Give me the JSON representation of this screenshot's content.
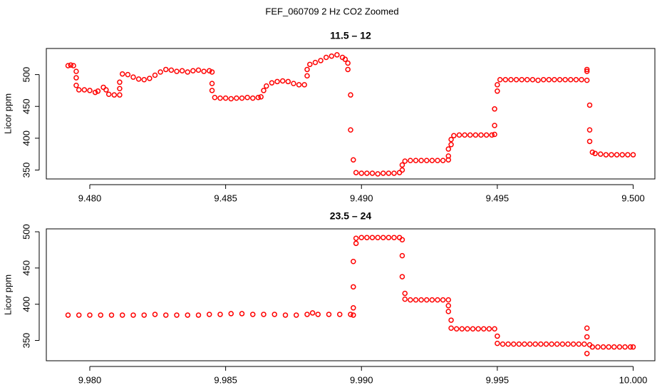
{
  "title": "FEF_060709 2 Hz CO2 Zoomed",
  "chart_data": [
    {
      "type": "scatter",
      "title": "11.5 – 12",
      "y_label": "Licor ppm",
      "xlim": [
        9.4784,
        9.5008
      ],
      "ylim": [
        336,
        541
      ],
      "xticks": [
        {
          "value": 9.48,
          "label": "9.480"
        },
        {
          "value": 9.485,
          "label": "9.485"
        },
        {
          "value": 9.49,
          "label": "9.490"
        },
        {
          "value": 9.495,
          "label": "9.495"
        },
        {
          "value": 9.5,
          "label": "9.500"
        }
      ],
      "yticks": [
        350,
        400,
        450,
        500
      ],
      "series": [
        {
          "color": "#ff0000",
          "x": [
            9.4792,
            9.4793,
            9.4794,
            9.4795,
            9.4795,
            9.4795,
            9.4796,
            9.4798,
            9.48,
            9.4802,
            9.4803,
            9.4805,
            9.4806,
            9.4807,
            9.4809,
            9.4811,
            9.4811,
            9.4811,
            9.4812,
            9.4814,
            9.4816,
            9.4818,
            9.482,
            9.4822,
            9.4824,
            9.4826,
            9.4828,
            9.483,
            9.4832,
            9.4834,
            9.4836,
            9.4838,
            9.484,
            9.4842,
            9.4844,
            9.4845,
            9.4845,
            9.4845,
            9.4846,
            9.4848,
            9.485,
            9.4852,
            9.4854,
            9.4856,
            9.4858,
            9.486,
            9.4862,
            9.4863,
            9.4864,
            9.4865,
            9.4867,
            9.4869,
            9.4871,
            9.4873,
            9.4875,
            9.4877,
            9.4879,
            9.488,
            9.488,
            9.4881,
            9.4883,
            9.4885,
            9.4887,
            9.4889,
            9.4891,
            9.4893,
            9.4894,
            9.4895,
            9.4895,
            9.4896,
            9.4896,
            9.4897,
            9.4898,
            9.49,
            9.4902,
            9.4904,
            9.4906,
            9.4908,
            9.491,
            9.4912,
            9.4914,
            9.4915,
            9.4915,
            9.4916,
            9.4918,
            9.492,
            9.4922,
            9.4924,
            9.4926,
            9.4928,
            9.493,
            9.4932,
            9.4932,
            9.4932,
            9.4933,
            9.4933,
            9.4934,
            9.4936,
            9.4938,
            9.494,
            9.4942,
            9.4944,
            9.4946,
            9.4948,
            9.4949,
            9.4949,
            9.4949,
            9.495,
            9.495,
            9.4951,
            9.4953,
            9.4955,
            9.4957,
            9.4959,
            9.4961,
            9.4963,
            9.4965,
            9.4967,
            9.4969,
            9.4971,
            9.4973,
            9.4975,
            9.4977,
            9.4979,
            9.4981,
            9.4983,
            9.4983,
            9.4983,
            9.4984,
            9.4984,
            9.4984,
            9.4985,
            9.4986,
            9.4988,
            9.499,
            9.4992,
            9.4994,
            9.4996,
            9.4998,
            9.5
          ],
          "values": [
            514,
            515,
            514,
            505,
            495,
            483,
            476,
            476,
            475,
            472,
            474,
            480,
            476,
            469,
            468,
            468,
            478,
            488,
            501,
            500,
            496,
            493,
            492,
            494,
            499,
            504,
            508,
            507,
            505,
            506,
            504,
            506,
            507,
            505,
            506,
            504,
            486,
            475,
            464,
            463,
            463,
            462,
            463,
            463,
            464,
            463,
            464,
            465,
            475,
            482,
            487,
            489,
            490,
            489,
            486,
            484,
            484,
            498,
            508,
            516,
            519,
            522,
            527,
            529,
            531,
            527,
            524,
            518,
            508,
            468,
            413,
            366,
            346,
            345,
            345,
            345,
            344,
            345,
            345,
            345,
            346,
            350,
            358,
            364,
            365,
            365,
            365,
            365,
            365,
            365,
            365,
            366,
            372,
            383,
            390,
            398,
            404,
            405,
            405,
            405,
            405,
            405,
            405,
            405,
            406,
            420,
            446,
            474,
            484,
            492,
            492,
            492,
            492,
            492,
            492,
            492,
            491,
            492,
            492,
            492,
            492,
            492,
            492,
            492,
            492,
            491,
            508,
            505,
            452,
            413,
            395,
            378,
            376,
            375,
            374,
            374,
            374,
            374,
            374,
            374
          ]
        }
      ]
    },
    {
      "type": "scatter",
      "title": "23.5 – 24",
      "y_label": "Licor ppm",
      "xlim": [
        9.9784,
        10.0008
      ],
      "ylim": [
        322,
        504
      ],
      "xticks": [
        {
          "value": 9.98,
          "label": "9.980"
        },
        {
          "value": 9.985,
          "label": "9.985"
        },
        {
          "value": 9.99,
          "label": "9.990"
        },
        {
          "value": 9.995,
          "label": "9.995"
        },
        {
          "value": 10,
          "label": "10.000"
        }
      ],
      "yticks": [
        350,
        400,
        450,
        500
      ],
      "series": [
        {
          "color": "#ff0000",
          "x": [
            9.9792,
            9.9796,
            9.98,
            9.9804,
            9.9808,
            9.9812,
            9.9816,
            9.982,
            9.9824,
            9.9828,
            9.9832,
            9.9836,
            9.984,
            9.9844,
            9.9848,
            9.9852,
            9.9856,
            9.986,
            9.9864,
            9.9868,
            9.9872,
            9.9876,
            9.988,
            9.9882,
            9.9884,
            9.9888,
            9.9892,
            9.9896,
            9.9897,
            9.9897,
            9.9897,
            9.9897,
            9.9898,
            9.9898,
            9.99,
            9.9902,
            9.9904,
            9.9906,
            9.9908,
            9.991,
            9.9912,
            9.9914,
            9.9915,
            9.9915,
            9.9915,
            9.9916,
            9.9916,
            9.9918,
            9.992,
            9.9922,
            9.9924,
            9.9926,
            9.9928,
            9.993,
            9.9932,
            9.9932,
            9.9932,
            9.9933,
            9.9933,
            9.9935,
            9.9937,
            9.9939,
            9.9941,
            9.9943,
            9.9945,
            9.9947,
            9.9949,
            9.995,
            9.995,
            9.9952,
            9.9954,
            9.9956,
            9.9958,
            9.996,
            9.9962,
            9.9964,
            9.9966,
            9.9968,
            9.997,
            9.9972,
            9.9974,
            9.9976,
            9.9978,
            9.998,
            9.9982,
            9.9983,
            9.9983,
            9.9983,
            9.9984,
            9.9985,
            9.9987,
            9.9989,
            9.9991,
            9.9993,
            9.9995,
            9.9997,
            9.9999,
            10
          ],
          "values": [
            385,
            385,
            385,
            385,
            385,
            385,
            385,
            385,
            386,
            385,
            385,
            385,
            385,
            386,
            386,
            387,
            387,
            386,
            386,
            386,
            385,
            385,
            386,
            388,
            386,
            386,
            386,
            386,
            385,
            395,
            424,
            459,
            484,
            491,
            492,
            492,
            492,
            492,
            492,
            492,
            492,
            492,
            489,
            467,
            438,
            415,
            407,
            406,
            406,
            406,
            406,
            406,
            406,
            406,
            406,
            398,
            390,
            378,
            367,
            366,
            366,
            366,
            366,
            366,
            366,
            366,
            366,
            356,
            346,
            345,
            345,
            345,
            345,
            345,
            345,
            345,
            345,
            345,
            345,
            345,
            345,
            345,
            345,
            345,
            345,
            367,
            355,
            332,
            344,
            341,
            341,
            341,
            341,
            341,
            341,
            341,
            341,
            341
          ]
        }
      ]
    }
  ]
}
